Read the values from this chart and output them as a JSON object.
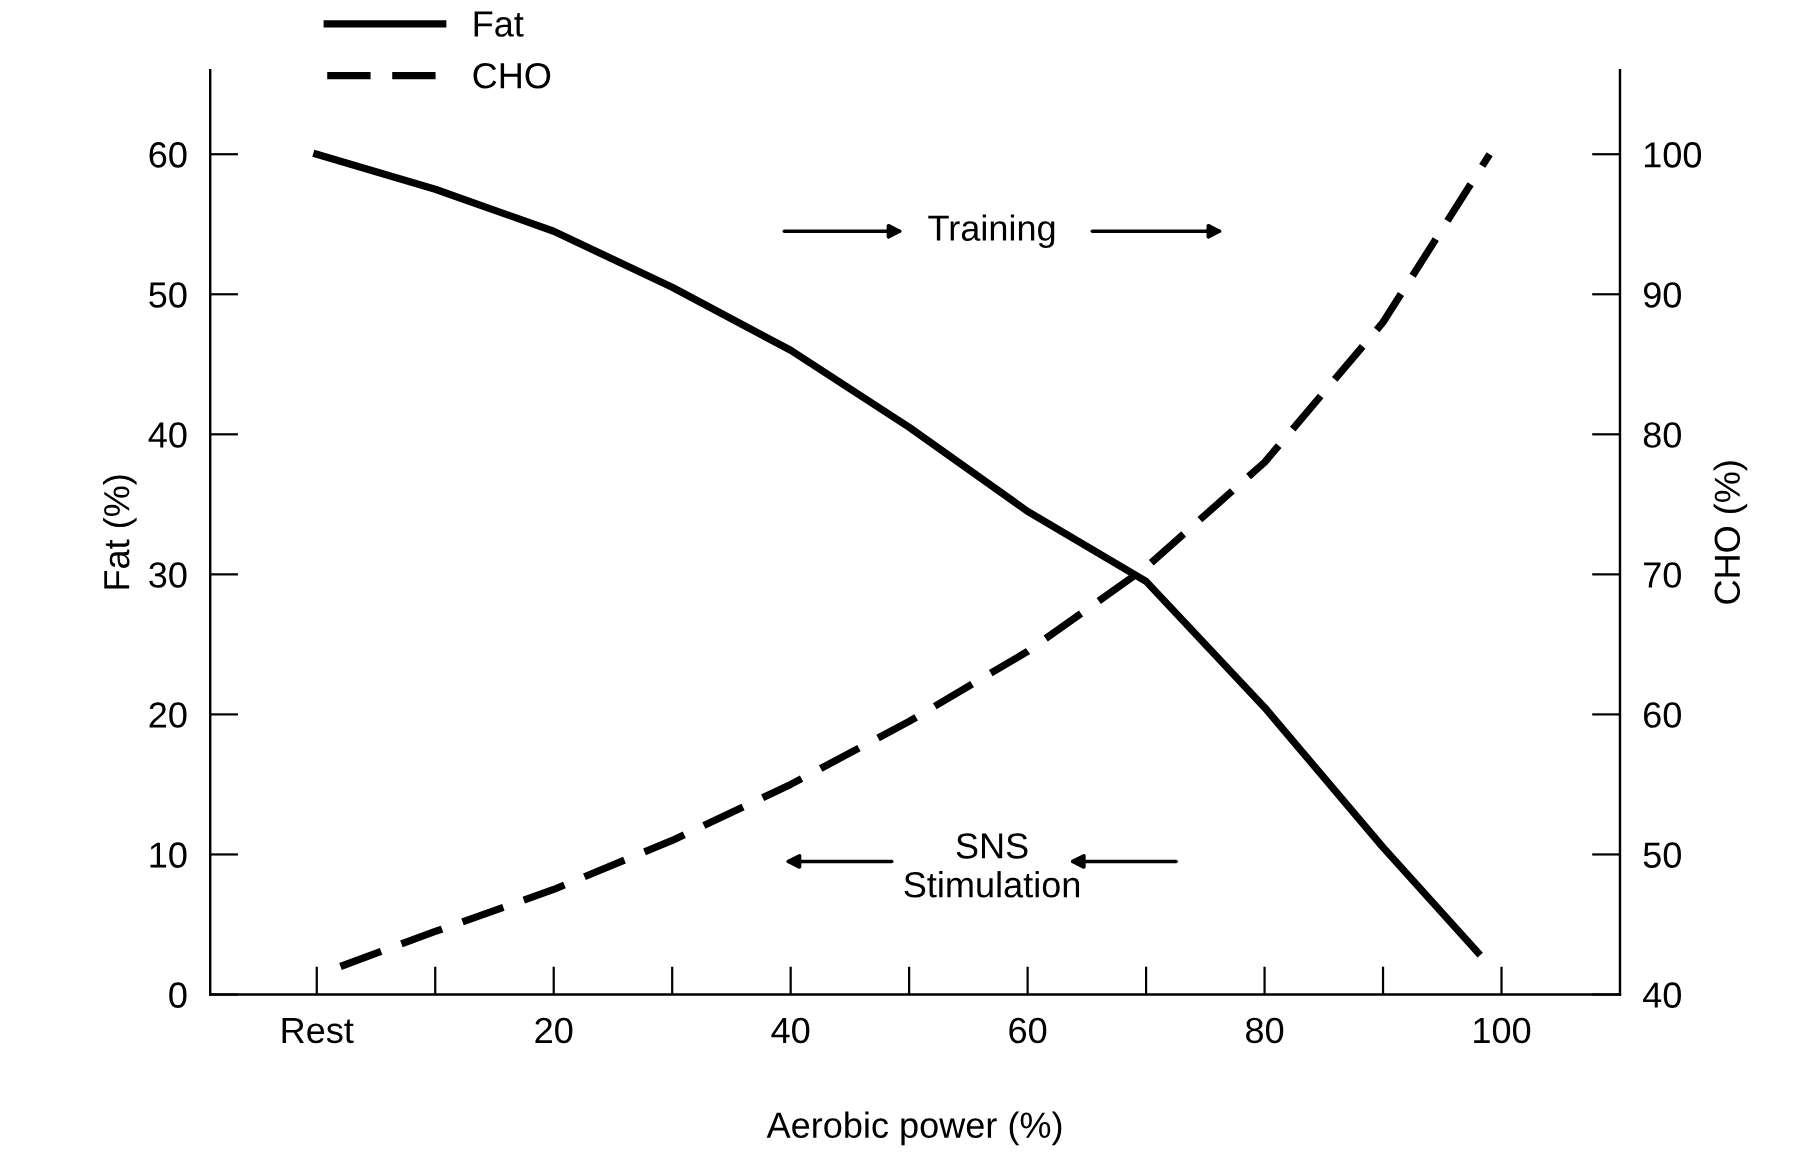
{
  "chart_data": {
    "type": "line",
    "xlabel": "Aerobic power (%)",
    "ylabel": "Fat (%)",
    "y2label": "CHO (%)",
    "xlim": [
      -9,
      110
    ],
    "xticks": [
      {
        "value": 0,
        "label": "Rest"
      },
      {
        "value": 10,
        "label": null
      },
      20,
      {
        "value": 30,
        "label": null
      },
      40,
      {
        "value": 50,
        "label": null
      },
      60,
      {
        "value": 70,
        "label": null
      },
      80,
      {
        "value": 90,
        "label": null
      },
      100
    ],
    "ylim": [
      0,
      66
    ],
    "yticks": [
      0,
      10,
      20,
      30,
      40,
      50,
      60
    ],
    "y2lim": [
      40,
      106
    ],
    "y2ticks": [
      40,
      50,
      60,
      70,
      80,
      90,
      100
    ],
    "grid": false,
    "legend": "top left",
    "marker": "none",
    "series": [
      {
        "name": "Fat",
        "color": "#000000",
        "line_style": "solid",
        "x": [
          0,
          10,
          20,
          30,
          40,
          50,
          60,
          70,
          80,
          90,
          98
        ],
        "values": [
          60,
          57.5,
          54.5,
          50.5,
          46,
          40.5,
          34.5,
          29.5,
          20.5,
          10.5,
          3
        ]
      },
      {
        "name": "CHO",
        "color": "#000000",
        "line_style": "dashed",
        "axis": "y2",
        "x": [
          2,
          10,
          20,
          30,
          40,
          50,
          60,
          70,
          80,
          90,
          99
        ],
        "values": [
          42,
          44.5,
          47.5,
          51,
          55,
          59.5,
          64.5,
          70.5,
          78,
          88,
          100
        ]
      }
    ],
    "annotations": [
      "Training",
      "SNS\nStimulation"
    ]
  }
}
